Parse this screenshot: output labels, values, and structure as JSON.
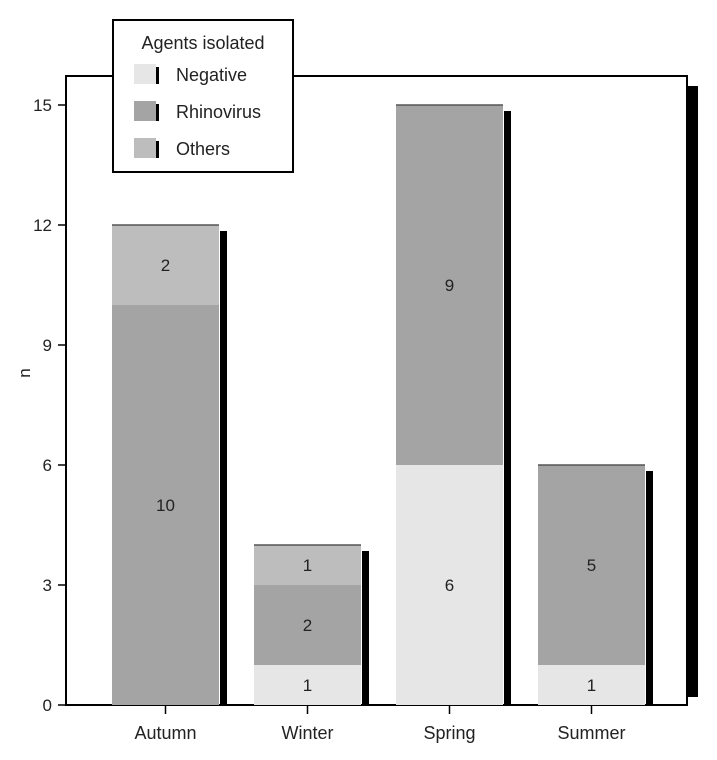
{
  "chart_data": {
    "type": "bar",
    "stacked": true,
    "categories": [
      "Autumn",
      "Winter",
      "Spring",
      "Summer"
    ],
    "series": [
      {
        "name": "Negative",
        "values": [
          0,
          1,
          6,
          1
        ],
        "color": "#e6e6e6"
      },
      {
        "name": "Rhinovirus",
        "values": [
          10,
          2,
          9,
          5
        ],
        "color": "#a4a4a4"
      },
      {
        "name": "Others",
        "values": [
          2,
          1,
          0,
          0
        ],
        "color": "#bdbdbd"
      }
    ],
    "ylabel": "n",
    "xlabel": "",
    "ylim": [
      0,
      16
    ],
    "yticks": [
      0,
      3,
      6,
      9,
      12,
      15
    ],
    "legend": {
      "title": "Agents isolated",
      "placement": "top-left"
    },
    "grid": false
  }
}
